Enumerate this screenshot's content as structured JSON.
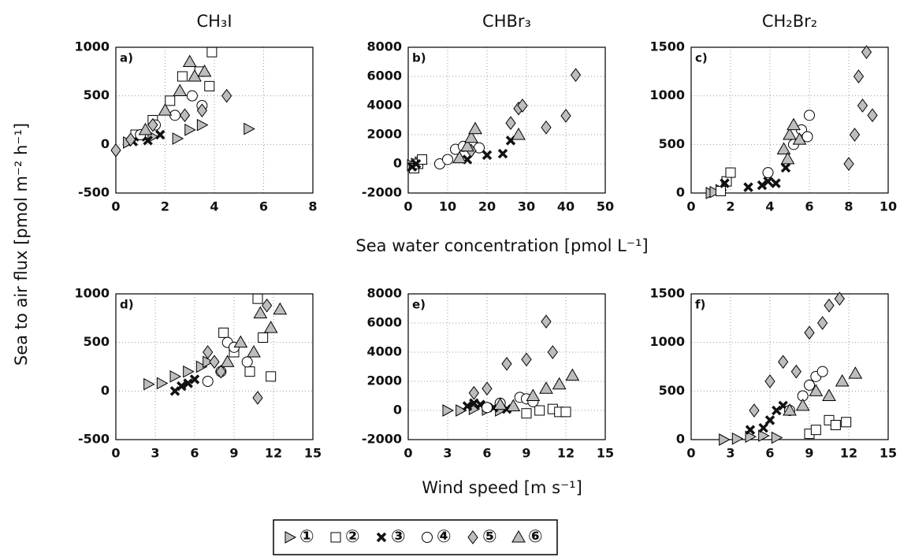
{
  "figure": {
    "ylabel": "Sea to air flux [pmol m⁻² h⁻¹]",
    "xlabel_top": "Sea water concentration [pmol L⁻¹]",
    "xlabel_bottom": "Wind speed [m s⁻¹]"
  },
  "chart_data": [
    {
      "type": "scatter",
      "title": "CH₃I",
      "panel": "a)",
      "xlim": [
        0,
        8
      ],
      "xticks": [
        0,
        2,
        4,
        6,
        8
      ],
      "ylim": [
        -500,
        1000
      ],
      "yticks": [
        -500,
        0,
        500,
        1000
      ],
      "grid": true,
      "series": [
        {
          "name": "①",
          "marker": "triangle-right",
          "color": "#bdbdbd",
          "x": [
            0.5,
            1.5,
            2.5,
            3.0,
            3.5,
            5.4
          ],
          "values": [
            20,
            80,
            60,
            150,
            200,
            160
          ]
        },
        {
          "name": "②",
          "marker": "square",
          "color": "#ffffff",
          "x": [
            0.8,
            1.5,
            2.2,
            2.7,
            3.4,
            3.8,
            3.9
          ],
          "values": [
            100,
            250,
            450,
            700,
            750,
            600,
            950
          ]
        },
        {
          "name": "③",
          "marker": "x",
          "color": "#111111",
          "x": [
            0.7,
            1.0,
            1.3,
            1.8
          ],
          "values": [
            30,
            80,
            40,
            100
          ]
        },
        {
          "name": "④",
          "marker": "circle",
          "color": "#ffffff",
          "x": [
            1.0,
            1.6,
            2.4,
            3.1,
            3.5
          ],
          "values": [
            100,
            200,
            300,
            500,
            400
          ]
        },
        {
          "name": "⑤",
          "marker": "diamond",
          "color": "#bdbdbd",
          "x": [
            0.0,
            0.6,
            1.5,
            2.8,
            3.5,
            4.5
          ],
          "values": [
            -60,
            50,
            200,
            300,
            350,
            500
          ]
        },
        {
          "name": "⑥",
          "marker": "triangle-up",
          "color": "#bdbdbd",
          "x": [
            1.2,
            2.0,
            2.6,
            3.0,
            3.2,
            3.6
          ],
          "values": [
            150,
            350,
            550,
            850,
            700,
            750
          ]
        }
      ]
    },
    {
      "type": "scatter",
      "title": "CHBr₃",
      "panel": "b)",
      "xlim": [
        0,
        50
      ],
      "xticks": [
        0,
        10,
        20,
        30,
        40,
        50
      ],
      "ylim": [
        -2000,
        8000
      ],
      "yticks": [
        -2000,
        0,
        2000,
        4000,
        6000,
        8000
      ],
      "grid": true,
      "series": [
        {
          "name": "①",
          "marker": "triangle-right",
          "color": "#bdbdbd",
          "x": [
            1,
            2,
            3
          ],
          "values": [
            -100,
            0,
            100
          ]
        },
        {
          "name": "②",
          "marker": "square",
          "color": "#ffffff",
          "x": [
            1.5,
            2.5,
            3.5
          ],
          "values": [
            -300,
            0,
            300
          ]
        },
        {
          "name": "③",
          "marker": "x",
          "color": "#111111",
          "x": [
            1,
            2,
            15,
            20,
            24,
            26
          ],
          "values": [
            -200,
            0,
            300,
            600,
            700,
            1600
          ]
        },
        {
          "name": "④",
          "marker": "circle",
          "color": "#ffffff",
          "x": [
            8,
            10,
            12,
            14,
            18
          ],
          "values": [
            0,
            300,
            1000,
            1200,
            1100
          ]
        },
        {
          "name": "⑤",
          "marker": "diamond",
          "color": "#bdbdbd",
          "x": [
            16,
            26,
            28,
            29,
            35,
            40,
            42.5
          ],
          "values": [
            900,
            2800,
            3800,
            4000,
            2500,
            3300,
            6100
          ]
        },
        {
          "name": "⑥",
          "marker": "triangle-up",
          "color": "#bdbdbd",
          "x": [
            13,
            15,
            16,
            17,
            28
          ],
          "values": [
            400,
            1200,
            1800,
            2400,
            2000
          ]
        }
      ]
    },
    {
      "type": "scatter",
      "title": "CH₂Br₂",
      "panel": "c)",
      "xlim": [
        0,
        10
      ],
      "xticks": [
        0,
        2,
        4,
        6,
        8,
        10
      ],
      "ylim": [
        0,
        1500
      ],
      "yticks": [
        0,
        500,
        1000,
        1500
      ],
      "grid": true,
      "series": [
        {
          "name": "①",
          "marker": "triangle-right",
          "color": "#bdbdbd",
          "x": [
            1.0,
            1.2,
            1.5
          ],
          "values": [
            0,
            10,
            30
          ]
        },
        {
          "name": "②",
          "marker": "square",
          "color": "#ffffff",
          "x": [
            1.5,
            1.8,
            2.0
          ],
          "values": [
            20,
            120,
            210
          ]
        },
        {
          "name": "③",
          "marker": "x",
          "color": "#111111",
          "x": [
            1.7,
            2.9,
            3.6,
            3.9,
            4.3,
            4.8
          ],
          "values": [
            100,
            60,
            80,
            120,
            100,
            260
          ]
        },
        {
          "name": "④",
          "marker": "circle",
          "color": "#ffffff",
          "x": [
            3.9,
            5.2,
            5.6,
            5.9,
            6.0
          ],
          "values": [
            210,
            500,
            650,
            580,
            800
          ]
        },
        {
          "name": "⑤",
          "marker": "diamond",
          "color": "#bdbdbd",
          "x": [
            8.0,
            8.3,
            8.5,
            8.7,
            8.9,
            9.2
          ],
          "values": [
            300,
            600,
            1200,
            900,
            1450,
            800
          ]
        },
        {
          "name": "⑥",
          "marker": "triangle-up",
          "color": "#bdbdbd",
          "x": [
            4.7,
            4.9,
            5.0,
            5.2,
            5.5
          ],
          "values": [
            450,
            350,
            600,
            700,
            550
          ]
        }
      ]
    },
    {
      "type": "scatter",
      "panel": "d)",
      "xlim": [
        0,
        15
      ],
      "xticks": [
        0,
        3,
        6,
        9,
        12,
        15
      ],
      "ylim": [
        -500,
        1000
      ],
      "yticks": [
        -500,
        0,
        500,
        1000
      ],
      "grid": true,
      "series": [
        {
          "name": "①",
          "marker": "triangle-right",
          "color": "#bdbdbd",
          "x": [
            2.5,
            3.5,
            4.5,
            5.5,
            6.5,
            7.0
          ],
          "values": [
            70,
            80,
            150,
            200,
            250,
            300
          ]
        },
        {
          "name": "②",
          "marker": "square",
          "color": "#ffffff",
          "x": [
            8.2,
            9.0,
            10.2,
            10.8,
            11.2,
            11.8
          ],
          "values": [
            600,
            400,
            200,
            950,
            550,
            150
          ]
        },
        {
          "name": "③",
          "marker": "x",
          "color": "#111111",
          "x": [
            4.5,
            5.0,
            5.5,
            6.0
          ],
          "values": [
            0,
            50,
            80,
            120
          ]
        },
        {
          "name": "④",
          "marker": "circle",
          "color": "#ffffff",
          "x": [
            7.0,
            8.0,
            8.5,
            9.0,
            10.0
          ],
          "values": [
            100,
            200,
            500,
            450,
            300
          ]
        },
        {
          "name": "⑤",
          "marker": "diamond",
          "color": "#bdbdbd",
          "x": [
            7.0,
            7.5,
            8.0,
            10.8,
            11.5
          ],
          "values": [
            400,
            300,
            200,
            -70,
            880
          ]
        },
        {
          "name": "⑥",
          "marker": "triangle-up",
          "color": "#bdbdbd",
          "x": [
            8.5,
            9.5,
            10.5,
            11.0,
            11.8,
            12.5
          ],
          "values": [
            300,
            500,
            400,
            800,
            650,
            840
          ]
        }
      ]
    },
    {
      "type": "scatter",
      "panel": "e)",
      "xlim": [
        0,
        15
      ],
      "xticks": [
        0,
        3,
        6,
        9,
        12,
        15
      ],
      "ylim": [
        -2000,
        8000
      ],
      "yticks": [
        -2000,
        0,
        2000,
        4000,
        6000,
        8000
      ],
      "grid": true,
      "series": [
        {
          "name": "①",
          "marker": "triangle-right",
          "color": "#bdbdbd",
          "x": [
            3,
            4,
            5,
            6,
            7
          ],
          "values": [
            0,
            0,
            100,
            50,
            0
          ]
        },
        {
          "name": "②",
          "marker": "square",
          "color": "#ffffff",
          "x": [
            9,
            10,
            11,
            11.5,
            12
          ],
          "values": [
            -200,
            0,
            100,
            -100,
            -100
          ]
        },
        {
          "name": "③",
          "marker": "x",
          "color": "#111111",
          "x": [
            4.5,
            5,
            5.5,
            6.5,
            7.5
          ],
          "values": [
            300,
            500,
            400,
            200,
            100
          ]
        },
        {
          "name": "④",
          "marker": "circle",
          "color": "#ffffff",
          "x": [
            6,
            7,
            8.5,
            9,
            9.5
          ],
          "values": [
            200,
            500,
            900,
            800,
            600
          ]
        },
        {
          "name": "⑤",
          "marker": "diamond",
          "color": "#bdbdbd",
          "x": [
            5,
            6,
            7.5,
            9,
            10.5,
            11
          ],
          "values": [
            1200,
            1500,
            3200,
            3500,
            6100,
            4000
          ]
        },
        {
          "name": "⑥",
          "marker": "triangle-up",
          "color": "#bdbdbd",
          "x": [
            7,
            8,
            9.5,
            10.5,
            11.5,
            12.5
          ],
          "values": [
            400,
            300,
            1000,
            1500,
            1800,
            2400
          ]
        }
      ]
    },
    {
      "type": "scatter",
      "panel": "f)",
      "xlim": [
        0,
        15
      ],
      "xticks": [
        0,
        3,
        6,
        9,
        12,
        15
      ],
      "ylim": [
        0,
        1500
      ],
      "yticks": [
        0,
        500,
        1000,
        1500
      ],
      "grid": true,
      "series": [
        {
          "name": "①",
          "marker": "triangle-right",
          "color": "#bdbdbd",
          "x": [
            2.5,
            3.5,
            4.5,
            5.5,
            6.5
          ],
          "values": [
            0,
            10,
            30,
            40,
            20
          ]
        },
        {
          "name": "②",
          "marker": "square",
          "color": "#ffffff",
          "x": [
            9,
            9.5,
            10.5,
            11,
            11.8
          ],
          "values": [
            60,
            100,
            200,
            150,
            180
          ]
        },
        {
          "name": "③",
          "marker": "x",
          "color": "#111111",
          "x": [
            4.5,
            5.5,
            6,
            6.5,
            7.0
          ],
          "values": [
            100,
            120,
            200,
            300,
            350
          ]
        },
        {
          "name": "④",
          "marker": "circle",
          "color": "#ffffff",
          "x": [
            7.5,
            8.5,
            9,
            9.5,
            10
          ],
          "values": [
            300,
            450,
            560,
            650,
            700
          ]
        },
        {
          "name": "⑤",
          "marker": "diamond",
          "color": "#bdbdbd",
          "x": [
            4.8,
            6,
            7,
            8,
            9,
            10,
            10.5,
            11.3
          ],
          "values": [
            300,
            600,
            800,
            700,
            1100,
            1200,
            1380,
            1450
          ]
        },
        {
          "name": "⑥",
          "marker": "triangle-up",
          "color": "#bdbdbd",
          "x": [
            7.5,
            8.5,
            9.5,
            10.5,
            11.5,
            12.5
          ],
          "values": [
            300,
            350,
            500,
            450,
            600,
            680
          ]
        }
      ]
    }
  ]
}
